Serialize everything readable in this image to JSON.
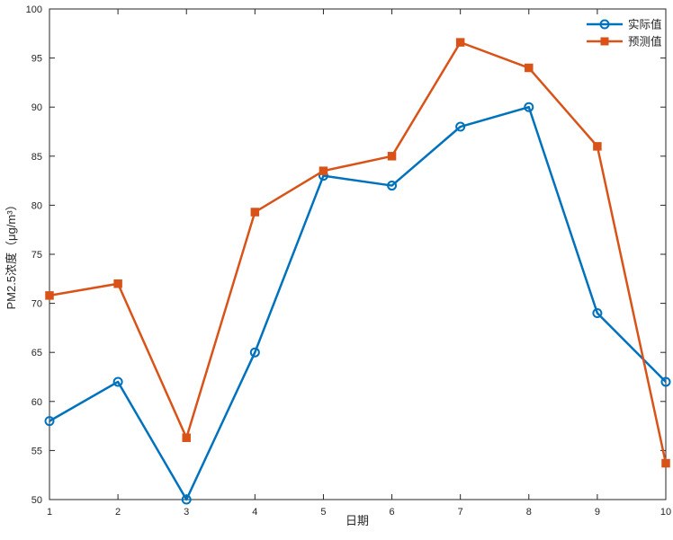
{
  "chart_data": {
    "type": "line",
    "title": "",
    "xlabel": "日期",
    "ylabel": "PM2.5浓度（μg/m³）",
    "x": [
      1,
      2,
      3,
      4,
      5,
      6,
      7,
      8,
      9,
      10
    ],
    "series": [
      {
        "name": "实际值",
        "values": [
          58,
          62,
          50,
          65,
          83,
          82,
          88,
          90,
          69,
          62
        ],
        "color": "#0072BD",
        "marker": "circle"
      },
      {
        "name": "预测值",
        "values": [
          70.8,
          72,
          56.3,
          79.3,
          83.5,
          85,
          96.6,
          94,
          86,
          53.7
        ],
        "color": "#D95319",
        "marker": "square"
      }
    ],
    "xlim": [
      1,
      10
    ],
    "ylim": [
      50,
      100
    ],
    "xticks": [
      1,
      2,
      3,
      4,
      5,
      6,
      7,
      8,
      9,
      10
    ],
    "yticks": [
      50,
      55,
      60,
      65,
      70,
      75,
      80,
      85,
      90,
      95,
      100
    ],
    "grid": false,
    "legend_position": "top-right",
    "axis_color": "#262626",
    "background": "#ffffff"
  }
}
